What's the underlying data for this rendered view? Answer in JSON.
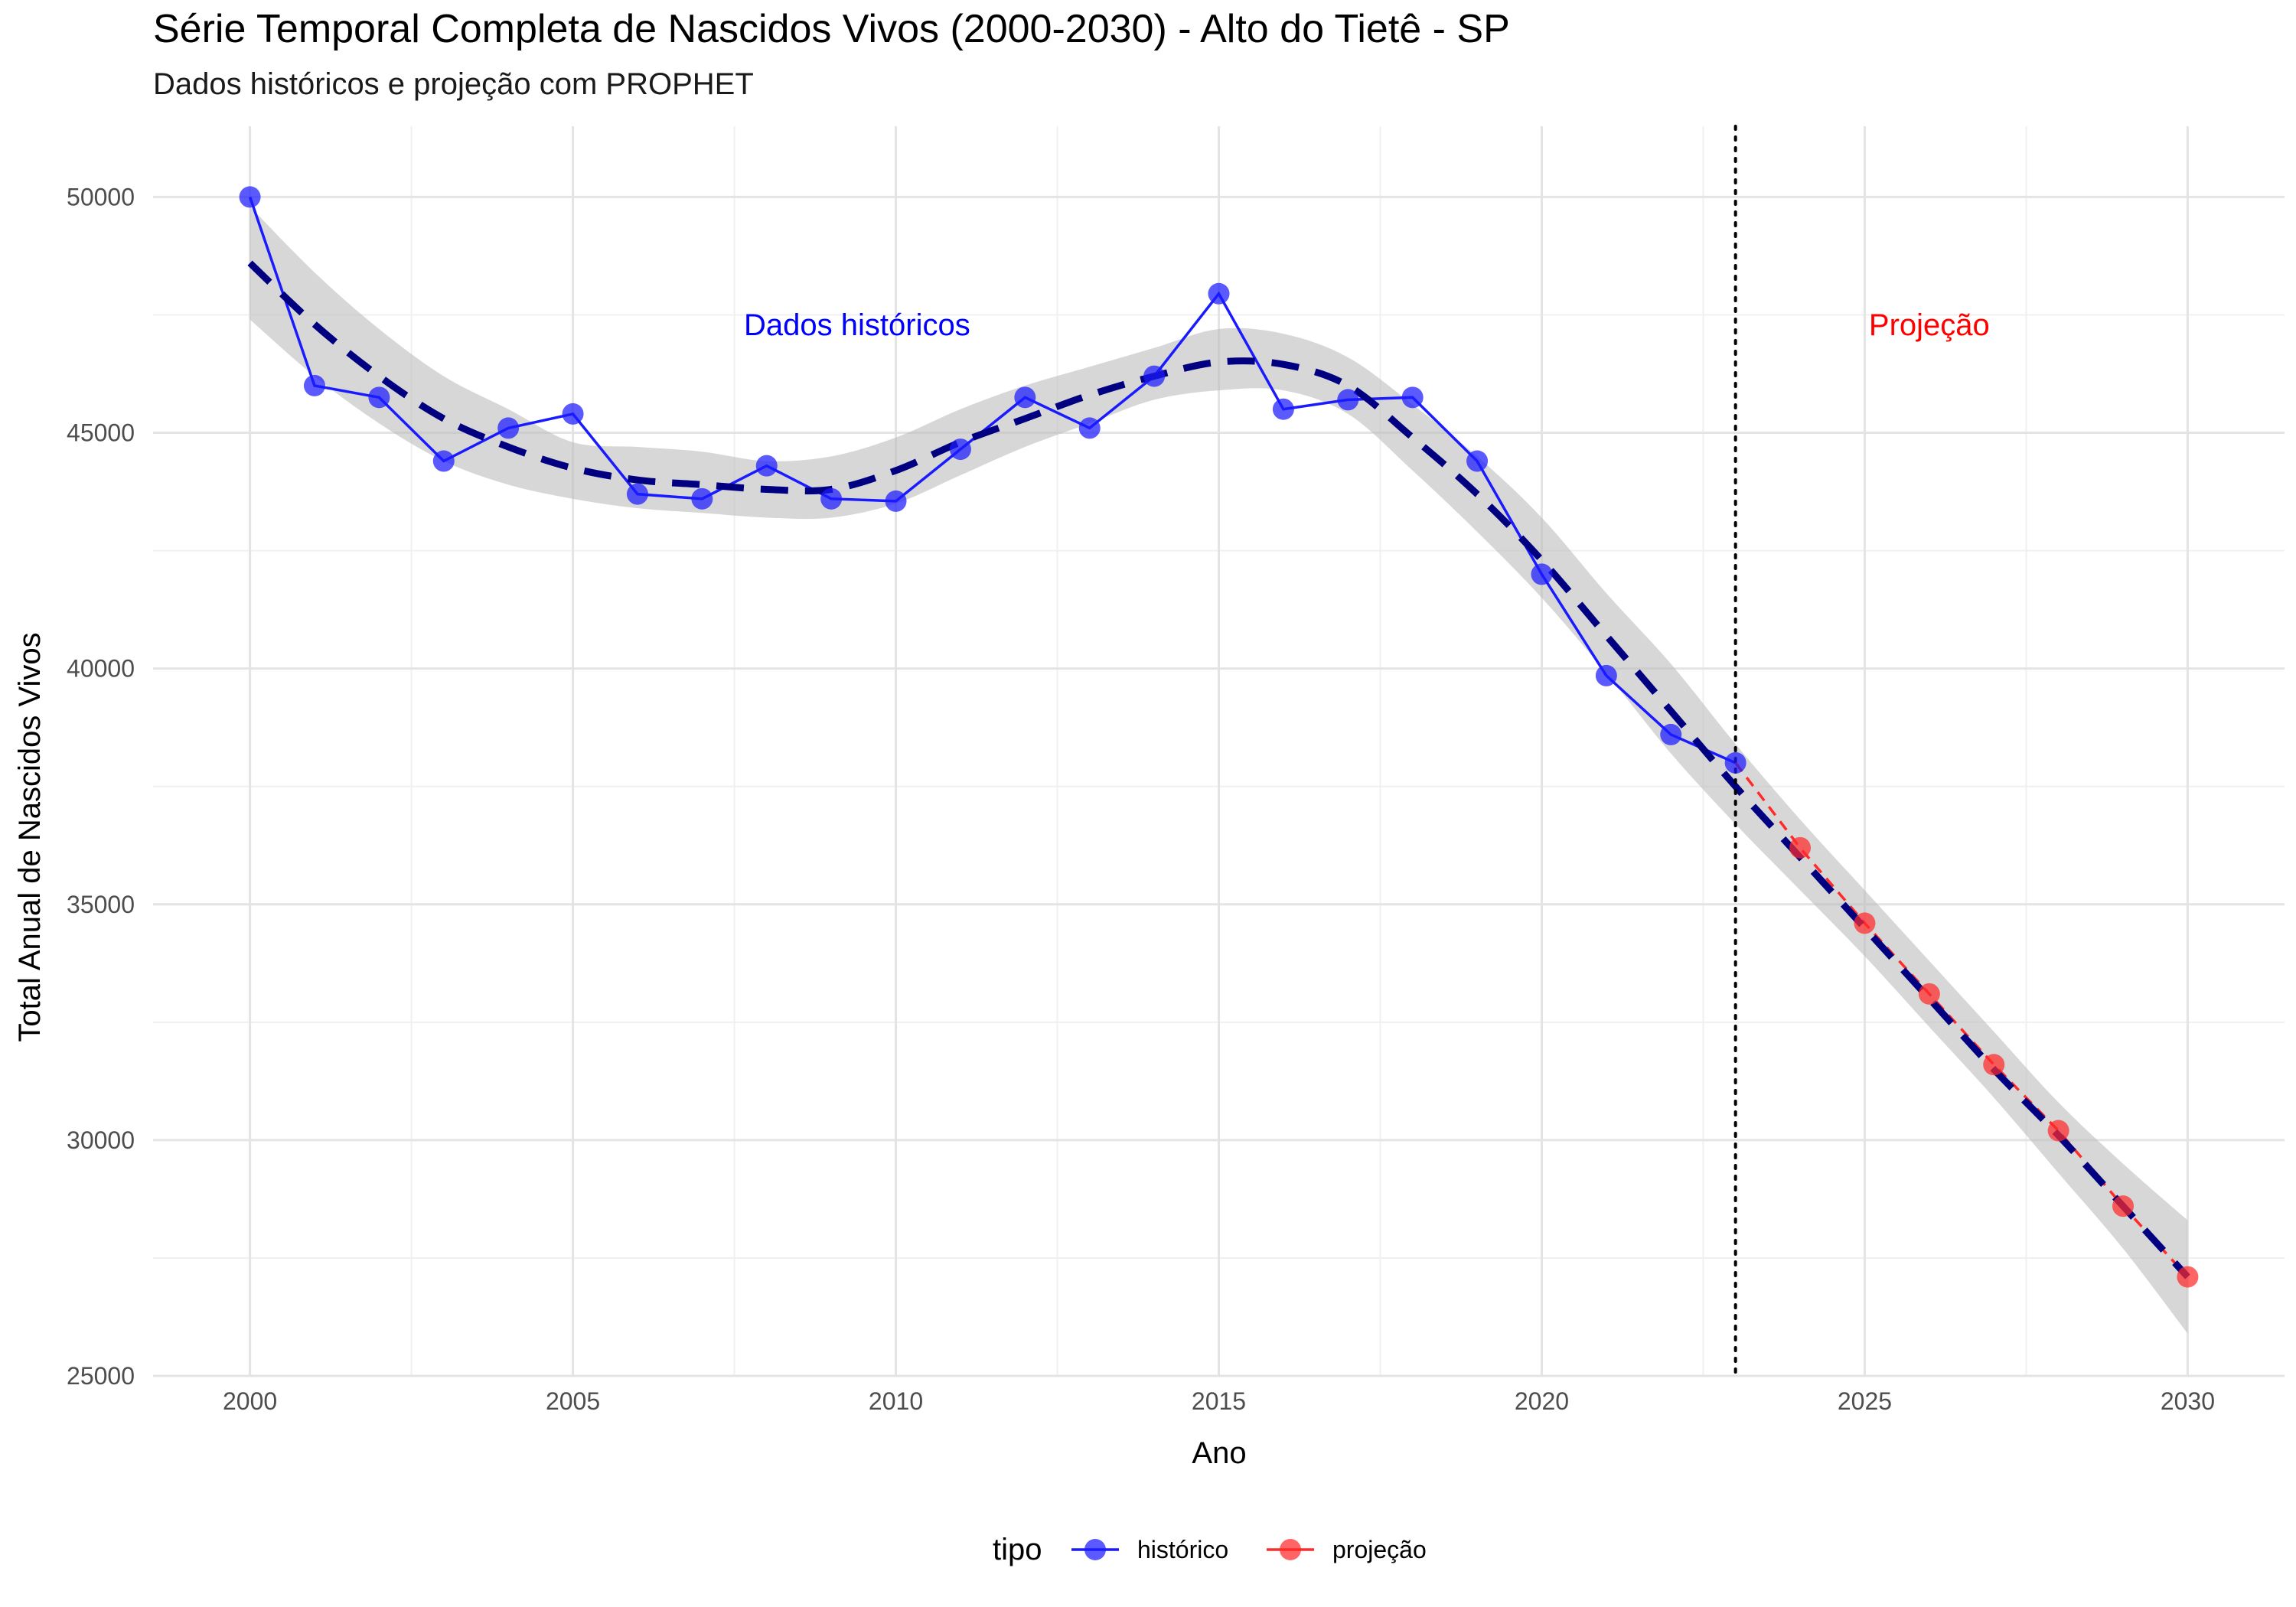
{
  "title": "Série Temporal Completa de Nascidos Vivos (2000-2030) -  Alto do Tietê - SP",
  "subtitle": "Dados históricos e projeção com PROPHET",
  "chart_data": {
    "type": "line",
    "xlabel": "Ano",
    "ylabel": "Total Anual de Nascidos Vivos",
    "xlim": [
      1998.5,
      2031.5
    ],
    "ylim": [
      25000,
      51500
    ],
    "x_ticks": [
      2000,
      2005,
      2010,
      2015,
      2020,
      2025,
      2030
    ],
    "x_tick_labels": [
      "2000",
      "2005",
      "2010",
      "2015",
      "2020",
      "2025",
      "2030"
    ],
    "y_ticks": [
      25000,
      30000,
      35000,
      40000,
      45000,
      50000
    ],
    "y_tick_labels": [
      "25000",
      "30000",
      "35000",
      "40000",
      "45000",
      "50000"
    ],
    "grid": true,
    "legend_position": "bottom",
    "legend_title": "tipo",
    "series": [
      {
        "name": "histórico",
        "color": "#1a1aff",
        "x": [
          2000,
          2001,
          2002,
          2003,
          2004,
          2005,
          2006,
          2007,
          2008,
          2009,
          2010,
          2011,
          2012,
          2013,
          2014,
          2015,
          2016,
          2017,
          2018,
          2019,
          2020,
          2021,
          2022,
          2023
        ],
        "values": [
          50000,
          46000,
          45750,
          44400,
          45100,
          45400,
          43700,
          43600,
          44300,
          43600,
          43550,
          44650,
          45750,
          45100,
          46200,
          47950,
          45500,
          45700,
          45750,
          44400,
          42000,
          39850,
          38600,
          38000
        ]
      },
      {
        "name": "projeção",
        "color": "#ff2a2a",
        "x": [
          2023,
          2024,
          2025,
          2026,
          2027,
          2028,
          2029,
          2030
        ],
        "values": [
          38000,
          36200,
          34600,
          33100,
          31600,
          30200,
          28600,
          27100
        ]
      }
    ],
    "trend": {
      "style": "dashed",
      "color": "#000080",
      "x": [
        2000,
        2001,
        2002,
        2003,
        2004,
        2005,
        2006,
        2007,
        2008,
        2009,
        2010,
        2011,
        2012,
        2013,
        2014,
        2015,
        2016,
        2017,
        2018,
        2019,
        2020,
        2021,
        2022,
        2023,
        2024,
        2025,
        2026,
        2027,
        2028,
        2029,
        2030
      ],
      "values": [
        48600,
        47300,
        46200,
        45300,
        44700,
        44250,
        44000,
        43900,
        43800,
        43800,
        44200,
        44800,
        45300,
        45800,
        46200,
        46500,
        46450,
        46000,
        44900,
        43700,
        42300,
        40700,
        39100,
        37500,
        36000,
        34500,
        33000,
        31500,
        30100,
        28600,
        27100
      ],
      "band_lower": [
        47400,
        46200,
        45200,
        44400,
        43900,
        43600,
        43400,
        43300,
        43200,
        43200,
        43500,
        44100,
        44700,
        45200,
        45700,
        45900,
        45900,
        45400,
        44200,
        42900,
        41500,
        39900,
        38200,
        36700,
        35300,
        33900,
        32400,
        30900,
        29300,
        27700,
        25900
      ],
      "band_upper": [
        49800,
        48400,
        47200,
        46200,
        45500,
        44800,
        44700,
        44600,
        44400,
        44500,
        44900,
        45500,
        46000,
        46400,
        46800,
        47200,
        47100,
        46600,
        45600,
        44500,
        43200,
        41600,
        40100,
        38400,
        36800,
        35300,
        33800,
        32300,
        30800,
        29500,
        28300
      ]
    },
    "vline": {
      "x": 2023,
      "style": "dotted",
      "color": "#000000"
    },
    "annotations": [
      {
        "text": "Dados históricos",
        "x": 2009.4,
        "y": 47300,
        "color": "#0000ff"
      },
      {
        "text": "Projeção",
        "x": 2026,
        "y": 47300,
        "color": "#ff0000"
      }
    ]
  }
}
